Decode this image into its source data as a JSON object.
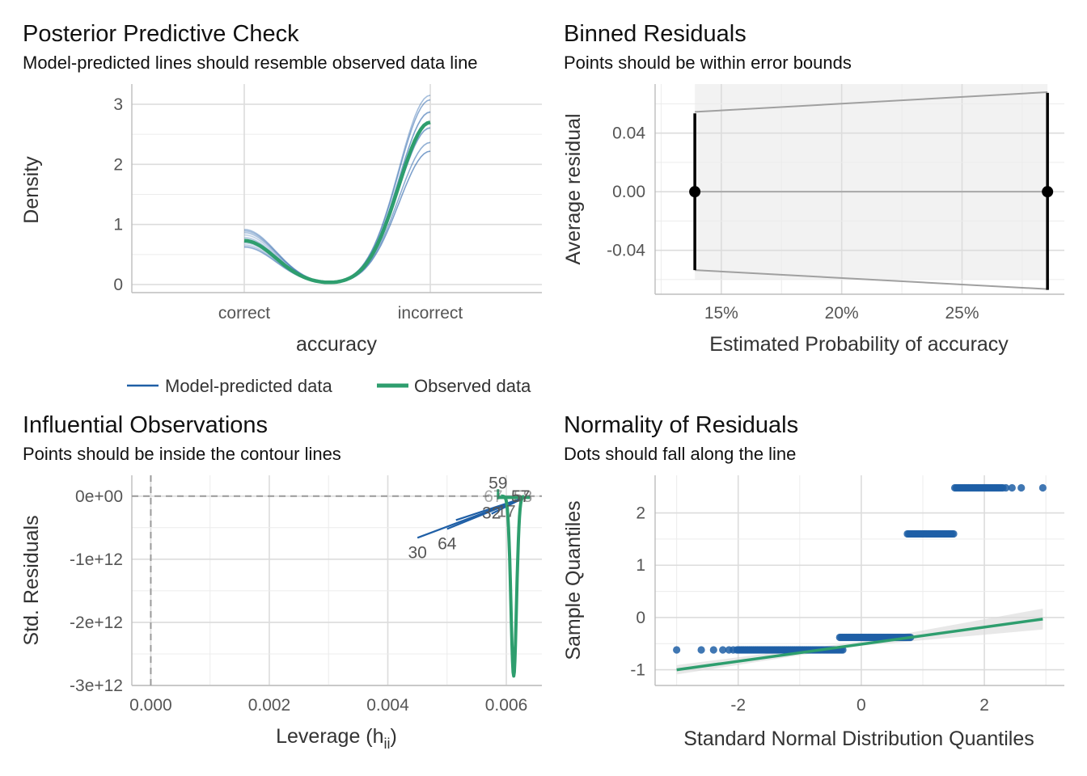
{
  "chart_data": [
    {
      "id": "ppc",
      "type": "line",
      "title": "Posterior Predictive Check",
      "subtitle": "Model-predicted lines should resemble observed data line",
      "xlabel": "accuracy",
      "ylabel": "Density",
      "categories": [
        "correct",
        "incorrect"
      ],
      "ylim": [
        0,
        3
      ],
      "yticks": [
        "0",
        "1",
        "2",
        "3"
      ],
      "series": [
        {
          "name": "Model-predicted data",
          "color": "#1f5fa6",
          "y_left_range": [
            0.62,
            0.92
          ],
          "y_right_range": [
            2.2,
            3.15
          ]
        },
        {
          "name": "Observed data",
          "color": "#2e9e6e",
          "y_left": 0.73,
          "y_right": 2.7
        }
      ],
      "legend": {
        "position": "bottom",
        "items": [
          "Model-predicted data",
          "Observed data"
        ]
      }
    },
    {
      "id": "binned",
      "type": "scatter",
      "title": "Binned Residuals",
      "subtitle": "Points should be within error bounds",
      "xlabel": "Estimated Probability of accuracy",
      "ylabel": "Average residual",
      "xlim": [
        0.1225,
        0.2925
      ],
      "ylim": [
        -0.07,
        0.0735
      ],
      "xticks": [
        "15%",
        "20%",
        "25%"
      ],
      "yticks": [
        "-0.04",
        "0.00",
        "0.04"
      ],
      "points": [
        {
          "x": 0.139,
          "y": 0.0,
          "ymin": -0.0535,
          "ymax": 0.0535
        },
        {
          "x": 0.2855,
          "y": 0.0,
          "ymin": -0.067,
          "ymax": 0.0675
        }
      ],
      "bound_upper": [
        [
          0.139,
          0.0545
        ],
        [
          0.2855,
          0.068
        ]
      ],
      "bound_lower": [
        [
          0.139,
          -0.0535
        ],
        [
          0.2855,
          -0.0665
        ]
      ]
    },
    {
      "id": "influential",
      "type": "scatter",
      "title": "Influential Observations",
      "subtitle": "Points should be inside the contour lines",
      "xlabel": "Leverage (h",
      "xlabel_sub": "ii",
      "xlabel_end": ")",
      "ylabel": "Std. Residuals",
      "xlim": [
        -0.00032,
        0.0066
      ],
      "ylim": [
        -3000000000000.0,
        330000000000.0
      ],
      "xticks": [
        "0.000",
        "0.002",
        "0.004",
        "0.006"
      ],
      "yticks": [
        "-3e+12",
        "-2e+12",
        "-1e+12",
        "0e+00"
      ],
      "labels": [
        "30",
        "64",
        "32",
        "17",
        "57",
        "58",
        "59",
        "67",
        "18",
        "60"
      ],
      "label_colors": {
        "blue": "#1f5fa6",
        "green": "#2e9e6e"
      }
    },
    {
      "id": "qq",
      "type": "scatter",
      "title": "Normality of Residuals",
      "subtitle": "Dots should fall along the line",
      "xlabel": "Standard Normal Distribution Quantiles",
      "ylabel": "Sample Quantiles",
      "xlim": [
        -3.35,
        3.3
      ],
      "ylim": [
        -1.3,
        2.72
      ],
      "xticks": [
        "-2",
        "0",
        "2"
      ],
      "yticks": [
        "-1",
        "0",
        "1",
        "2"
      ],
      "groups": [
        {
          "y": -0.62,
          "x_from": -3.0,
          "x_to": -0.3,
          "sparse": [
            -3.0,
            -2.6,
            -2.4,
            -2.25,
            -2.15,
            -2.08
          ]
        },
        {
          "y": -0.38,
          "x_from": -0.35,
          "x_to": 0.8,
          "sparse": []
        },
        {
          "y": 1.6,
          "x_from": 0.75,
          "x_to": 1.5,
          "sparse": []
        },
        {
          "y": 2.48,
          "x_from": 1.52,
          "x_to": 2.3,
          "sparse": [
            2.35,
            2.45,
            2.6,
            2.95
          ]
        }
      ],
      "line": {
        "x0": -3.0,
        "y0": -1.0,
        "x1": 2.95,
        "y1": -0.03,
        "color": "#2e9e6e"
      },
      "point_color": "#1f5fa6"
    }
  ]
}
